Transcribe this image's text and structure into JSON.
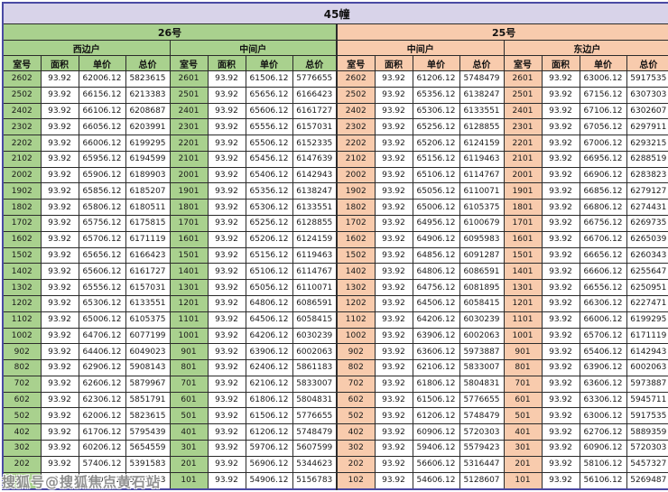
{
  "title": "45幢",
  "watermark": "搜狐号@搜狐焦点黄石站",
  "colors": {
    "green": "#a9d18e",
    "peach": "#f8cbad",
    "lavender": "#d8d3e9",
    "border": "#4a49a3"
  },
  "table": {
    "groups": [
      {
        "label": "26号",
        "sections": [
          "西边户",
          "中间户"
        ]
      },
      {
        "label": "25号",
        "sections": [
          "中间户",
          "东边户"
        ]
      }
    ],
    "column_headers": [
      "室号",
      "面积",
      "单价",
      "总价"
    ],
    "rows": [
      [
        "2602",
        "93.92",
        "62006.12",
        "5823615",
        "2601",
        "93.92",
        "61506.12",
        "5776655",
        "2602",
        "93.92",
        "61206.12",
        "5748479",
        "2601",
        "93.92",
        "63006.12",
        "5917535"
      ],
      [
        "2502",
        "93.92",
        "66156.12",
        "6213383",
        "2501",
        "93.92",
        "65656.12",
        "6166423",
        "2502",
        "93.92",
        "65356.12",
        "6138247",
        "2501",
        "93.92",
        "67156.12",
        "6307303"
      ],
      [
        "2402",
        "93.92",
        "66106.12",
        "6208687",
        "2401",
        "93.92",
        "65606.12",
        "6161727",
        "2402",
        "93.92",
        "65306.12",
        "6133551",
        "2401",
        "93.92",
        "67106.12",
        "6302607"
      ],
      [
        "2302",
        "93.92",
        "66056.12",
        "6203991",
        "2301",
        "93.92",
        "65556.12",
        "6157031",
        "2302",
        "93.92",
        "65256.12",
        "6128855",
        "2301",
        "93.92",
        "67056.12",
        "6297911"
      ],
      [
        "2202",
        "93.92",
        "66006.12",
        "6199295",
        "2201",
        "93.92",
        "65506.12",
        "6152335",
        "2202",
        "93.92",
        "65206.12",
        "6124159",
        "2201",
        "93.92",
        "67006.12",
        "6293215"
      ],
      [
        "2102",
        "93.92",
        "65956.12",
        "6194599",
        "2101",
        "93.92",
        "65456.12",
        "6147639",
        "2102",
        "93.92",
        "65156.12",
        "6119463",
        "2101",
        "93.92",
        "66956.12",
        "6288519"
      ],
      [
        "2002",
        "93.92",
        "65906.12",
        "6189903",
        "2001",
        "93.92",
        "65406.12",
        "6142943",
        "2002",
        "93.92",
        "65106.12",
        "6114767",
        "2001",
        "93.92",
        "66906.12",
        "6283823"
      ],
      [
        "1902",
        "93.92",
        "65856.12",
        "6185207",
        "1901",
        "93.92",
        "65356.12",
        "6138247",
        "1902",
        "93.92",
        "65056.12",
        "6110071",
        "1901",
        "93.92",
        "66856.12",
        "6279127"
      ],
      [
        "1802",
        "93.92",
        "65806.12",
        "6180511",
        "1801",
        "93.92",
        "65306.12",
        "6133551",
        "1802",
        "93.92",
        "65006.12",
        "6105375",
        "1801",
        "93.92",
        "66806.12",
        "6274431"
      ],
      [
        "1702",
        "93.92",
        "65756.12",
        "6175815",
        "1701",
        "93.92",
        "65256.12",
        "6128855",
        "1702",
        "93.92",
        "64956.12",
        "6100679",
        "1701",
        "93.92",
        "66756.12",
        "6269735"
      ],
      [
        "1602",
        "93.92",
        "65706.12",
        "6171119",
        "1601",
        "93.92",
        "65206.12",
        "6124159",
        "1602",
        "93.92",
        "64906.12",
        "6095983",
        "1601",
        "93.92",
        "66706.12",
        "6265039"
      ],
      [
        "1502",
        "93.92",
        "65656.12",
        "6166423",
        "1501",
        "93.92",
        "65156.12",
        "6119463",
        "1502",
        "93.92",
        "64856.12",
        "6091287",
        "1501",
        "93.92",
        "66656.12",
        "6260343"
      ],
      [
        "1402",
        "93.92",
        "65606.12",
        "6161727",
        "1401",
        "93.92",
        "65106.12",
        "6114767",
        "1402",
        "93.92",
        "64806.12",
        "6086591",
        "1401",
        "93.92",
        "66606.12",
        "6255647"
      ],
      [
        "1302",
        "93.92",
        "65556.12",
        "6157031",
        "1301",
        "93.92",
        "65056.12",
        "6110071",
        "1302",
        "93.92",
        "64756.12",
        "6081895",
        "1301",
        "93.92",
        "66556.12",
        "6250951"
      ],
      [
        "1202",
        "93.92",
        "65306.12",
        "6133551",
        "1201",
        "93.92",
        "64806.12",
        "6086591",
        "1202",
        "93.92",
        "64506.12",
        "6058415",
        "1201",
        "93.92",
        "66306.12",
        "6227471"
      ],
      [
        "1102",
        "93.92",
        "65006.12",
        "6105375",
        "1101",
        "93.92",
        "64506.12",
        "6058415",
        "1102",
        "93.92",
        "64206.12",
        "6030239",
        "1101",
        "93.92",
        "66006.12",
        "6199295"
      ],
      [
        "1002",
        "93.92",
        "64706.12",
        "6077199",
        "1001",
        "93.92",
        "64206.12",
        "6030239",
        "1002",
        "93.92",
        "63906.12",
        "6002063",
        "1001",
        "93.92",
        "65706.12",
        "6171119"
      ],
      [
        "902",
        "93.92",
        "64406.12",
        "6049023",
        "901",
        "93.92",
        "63906.12",
        "6002063",
        "902",
        "93.92",
        "63606.12",
        "5973887",
        "901",
        "93.92",
        "65406.12",
        "6142943"
      ],
      [
        "802",
        "93.92",
        "62906.12",
        "5908143",
        "801",
        "93.92",
        "62406.12",
        "5861183",
        "802",
        "93.92",
        "62106.12",
        "5833007",
        "801",
        "93.92",
        "63906.12",
        "6002063"
      ],
      [
        "702",
        "93.92",
        "62606.12",
        "5879967",
        "701",
        "93.92",
        "62106.12",
        "5833007",
        "702",
        "93.92",
        "61806.12",
        "5804831",
        "701",
        "93.92",
        "63606.12",
        "5973887"
      ],
      [
        "602",
        "93.92",
        "62306.12",
        "5851791",
        "601",
        "93.92",
        "61806.12",
        "5804831",
        "602",
        "93.92",
        "61506.12",
        "5776655",
        "601",
        "93.92",
        "63306.12",
        "5945711"
      ],
      [
        "502",
        "93.92",
        "62006.12",
        "5823615",
        "501",
        "93.92",
        "61506.12",
        "5776655",
        "502",
        "93.92",
        "61206.12",
        "5748479",
        "501",
        "93.92",
        "63006.12",
        "5917535"
      ],
      [
        "402",
        "93.92",
        "61706.12",
        "5795439",
        "401",
        "93.92",
        "61206.12",
        "5748479",
        "402",
        "93.92",
        "60906.12",
        "5720303",
        "401",
        "93.92",
        "62706.12",
        "5889359"
      ],
      [
        "302",
        "93.92",
        "60206.12",
        "5654559",
        "301",
        "93.92",
        "59706.12",
        "5607599",
        "302",
        "93.92",
        "59406.12",
        "5579423",
        "301",
        "93.92",
        "60906.12",
        "5720303"
      ],
      [
        "202",
        "93.92",
        "57406.12",
        "5391583",
        "201",
        "93.92",
        "56906.12",
        "5344623",
        "202",
        "93.92",
        "56606.12",
        "5316447",
        "201",
        "93.92",
        "58106.12",
        "5457327"
      ],
      [
        "102",
        "93.92",
        "55406.12",
        "5203743",
        "101",
        "93.92",
        "54906.12",
        "5156783",
        "102",
        "93.92",
        "54606.12",
        "5128607",
        "101",
        "93.92",
        "56106.12",
        "5269487"
      ]
    ]
  }
}
